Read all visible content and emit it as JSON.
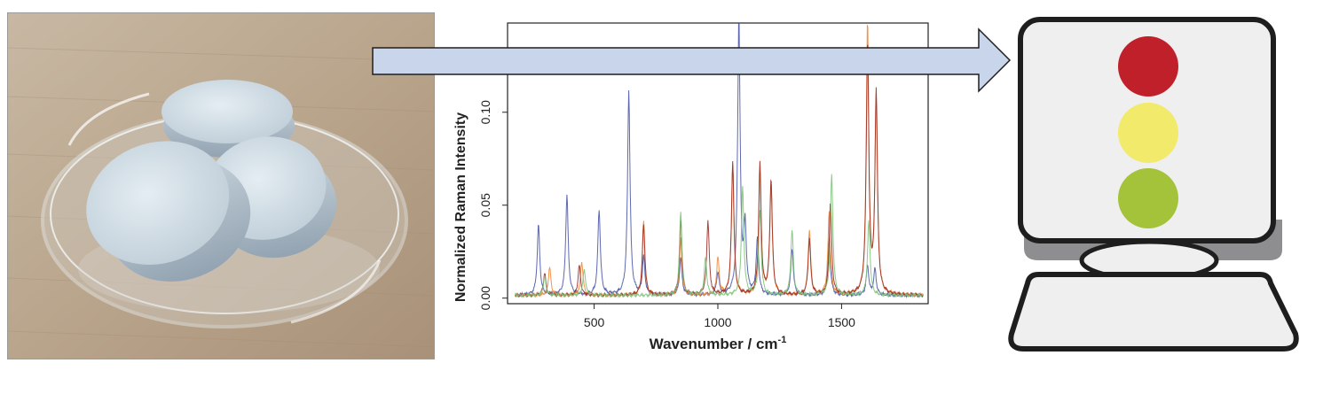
{
  "photo": {
    "icon": "tablets-in-petri-dish-photo"
  },
  "arrow": {
    "icon": "right-arrow",
    "fill": "#c9d5ea",
    "stroke": "#1f1f1f"
  },
  "chart_data": {
    "type": "line",
    "title": "",
    "xlabel": "Wavenumber / cm",
    "xlabel_superscript": "-1",
    "ylabel": "Normalized Raman Intensity",
    "xlim": [
      150,
      1850
    ],
    "ylim": [
      -0.003,
      0.148
    ],
    "xticks": [
      500,
      1000,
      1500
    ],
    "xtick_labels": [
      "500",
      "1000",
      "1500"
    ],
    "yticks": [
      0.0,
      0.05,
      0.1
    ],
    "ytick_labels": [
      "0.00",
      "0.05",
      "0.10"
    ],
    "grid": false,
    "legend": "none",
    "series": [
      {
        "color": "#4d58a8",
        "peaks": [
          [
            275,
            0.038
          ],
          [
            390,
            0.054
          ],
          [
            520,
            0.046
          ],
          [
            640,
            0.11
          ],
          [
            700,
            0.02
          ],
          [
            850,
            0.02
          ],
          [
            1000,
            0.012
          ],
          [
            1085,
            0.148
          ],
          [
            1110,
            0.035
          ],
          [
            1160,
            0.03
          ],
          [
            1300,
            0.025
          ],
          [
            1450,
            0.03
          ],
          [
            1605,
            0.016
          ],
          [
            1635,
            0.014
          ]
        ]
      },
      {
        "color": "#ef8a3b",
        "peaks": [
          [
            320,
            0.015
          ],
          [
            450,
            0.018
          ],
          [
            700,
            0.04
          ],
          [
            850,
            0.03
          ],
          [
            1000,
            0.02
          ],
          [
            1060,
            0.07
          ],
          [
            1170,
            0.065
          ],
          [
            1215,
            0.06
          ],
          [
            1370,
            0.035
          ],
          [
            1450,
            0.045
          ],
          [
            1605,
            0.146
          ],
          [
            1640,
            0.105
          ]
        ]
      },
      {
        "color": "#9c3027",
        "peaks": [
          [
            300,
            0.012
          ],
          [
            440,
            0.016
          ],
          [
            700,
            0.038
          ],
          [
            850,
            0.04
          ],
          [
            960,
            0.04
          ],
          [
            1060,
            0.072
          ],
          [
            1170,
            0.07
          ],
          [
            1215,
            0.062
          ],
          [
            1370,
            0.03
          ],
          [
            1455,
            0.05
          ],
          [
            1605,
            0.135
          ],
          [
            1640,
            0.108
          ]
        ]
      },
      {
        "color": "#7ec47a",
        "peaks": [
          [
            300,
            0.01
          ],
          [
            460,
            0.014
          ],
          [
            850,
            0.045
          ],
          [
            950,
            0.02
          ],
          [
            1100,
            0.058
          ],
          [
            1170,
            0.045
          ],
          [
            1300,
            0.035
          ],
          [
            1460,
            0.065
          ],
          [
            1610,
            0.04
          ]
        ]
      }
    ]
  },
  "computer": {
    "icon": "computer-traffic-light-icon",
    "lights": [
      {
        "name": "red",
        "color": "#c0202a"
      },
      {
        "name": "yellow",
        "color": "#f1ea6a"
      },
      {
        "name": "green",
        "color": "#a4c23a"
      }
    ]
  }
}
